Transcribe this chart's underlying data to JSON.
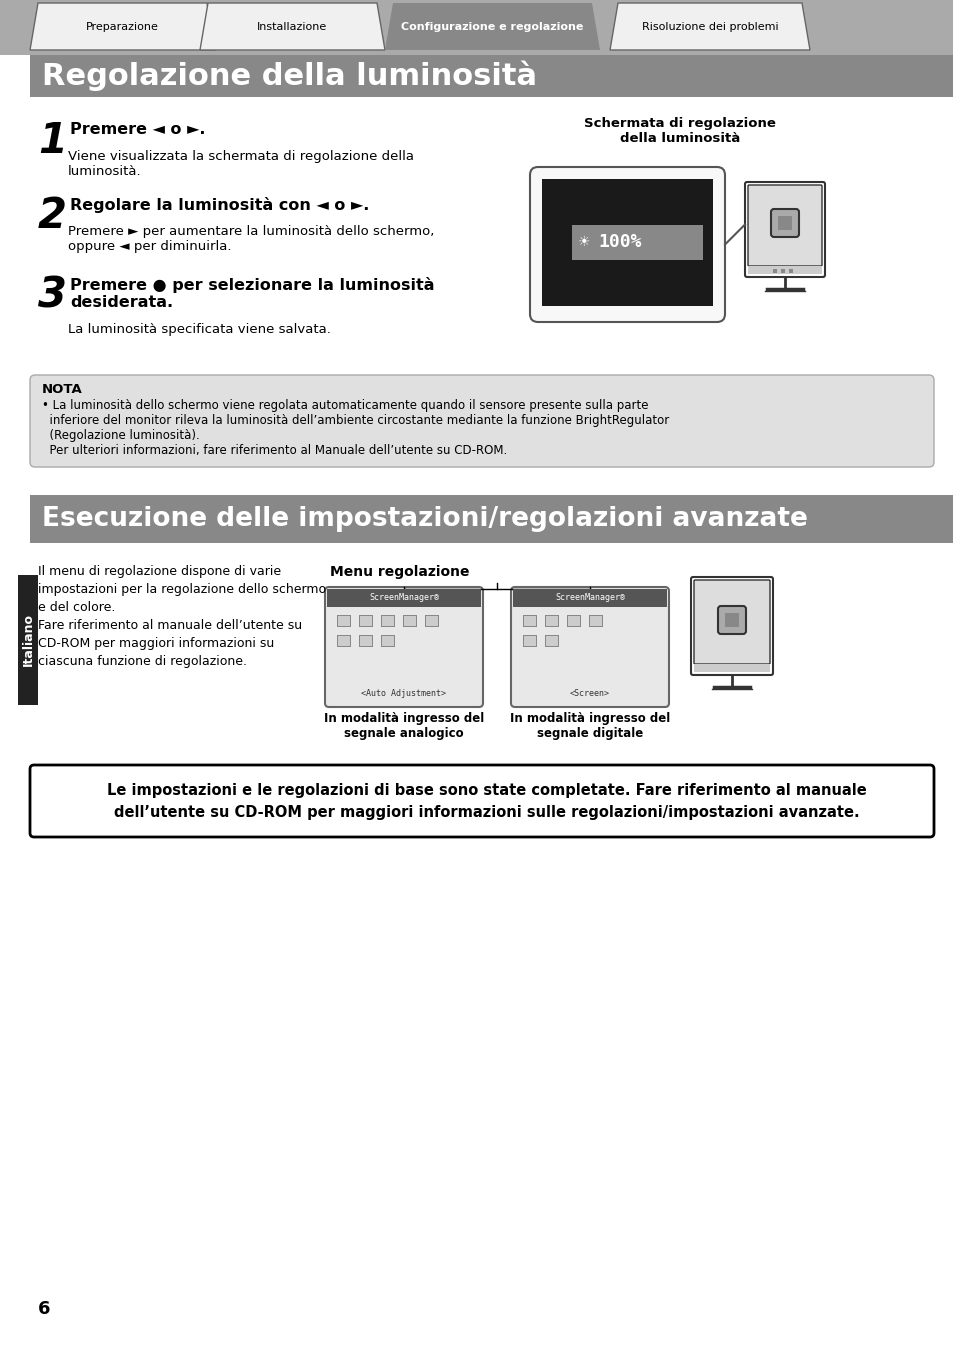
{
  "page_bg": "#ffffff",
  "tab_gray": "#888888",
  "tab_labels": [
    "Preparazione",
    "Installazione",
    "Configurazione e regolazione",
    "Risoluzione dei problemi"
  ],
  "section1_title": "Regolazione della luminosità",
  "section2_title": "Esecuzione delle impostazioni/regolazioni avanzate",
  "header_bg": "#888888",
  "header_fg": "#ffffff",
  "step1_num": "1",
  "step1_head": "Premere ◄ o ►.",
  "step1_body": "Viene visualizzata la schermata di regolazione della\nluminosità.",
  "step2_num": "2",
  "step2_head": "Regolare la luminosità con ◄ o ►.",
  "step2_body": "Premere ► per aumentare la luminosità dello schermo,\noppure ◄ per diminuirla.",
  "step3_num": "3",
  "step3_head": "Premere ● per selezionare la luminosità\ndesiderata.",
  "step3_body": "La luminosità specificata viene salvata.",
  "screen_caption": "Schermata di regolazione\ndella luminosità",
  "nota_title": "NOTA",
  "nota_line1": "• La luminosità dello schermo viene regolata automaticamente quando il sensore presente sulla parte",
  "nota_line2": "  inferiore del monitor rileva la luminosità dell’ambiente circostante mediante la funzione BrightRegulator",
  "nota_line3": "  (Regolazione luminosità).",
  "nota_line4": "  Per ulteriori informazioni, fare riferimento al Manuale dell’utente su CD-ROM.",
  "nota_bg": "#e0e0e0",
  "sec2_left": "Il menu di regolazione dispone di varie\nimpostazioni per la regolazione dello schermo\ne del colore.\nFare riferimento al manuale dell’utente su\nCD-ROM per maggiori informazioni su\nciascuna funzione di regolazione.",
  "menu_label": "Menu regolazione",
  "analog_label": "In modalità ingresso del\nsegnale analogico",
  "digital_label": "In modalità ingresso del\nsegnale digitale",
  "final_text1": "Le impostazioni e le regolazioni di base sono state completate. Fare riferimento al manuale",
  "final_text2": "dell’utente su CD-ROM per maggiori informazioni sulle regolazioni/impostazioni avanzate.",
  "italiano": "Italiano",
  "page_num": "6"
}
